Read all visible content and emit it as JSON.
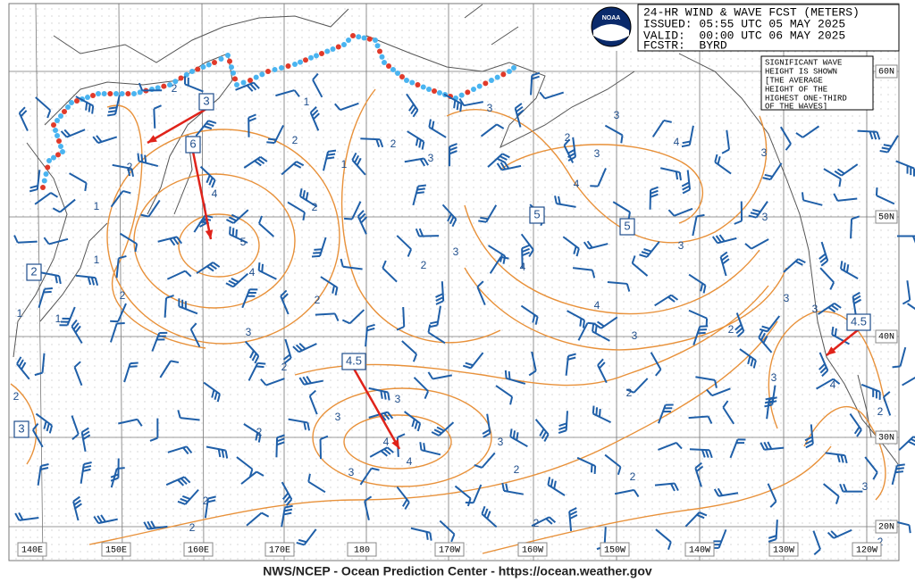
{
  "header": {
    "lines": [
      "24-HR WIND & WAVE FCST (METERS)",
      "ISSUED: 05:55 UTC 05 MAY 2025",
      "VALID:  00:00 UTC 06 MAY 2025",
      "FCSTR:  BYRD"
    ]
  },
  "logo": "NOAA",
  "note": {
    "lines": [
      "SIGNIFICANT WAVE",
      "HEIGHT IS SHOWN",
      "[THE AVERAGE",
      "HEIGHT OF THE",
      "HIGHEST ONE-THIRD",
      "OF THE WAVES]"
    ]
  },
  "longitude_labels": [
    "140E",
    "150E",
    "160E",
    "170E",
    "180",
    "170W",
    "160W",
    "150W",
    "140W",
    "130W",
    "120W"
  ],
  "latitude_labels": [
    "60N",
    "50N",
    "40N",
    "30N",
    "20N"
  ],
  "boxed_labels": [
    3,
    6,
    2,
    3,
    5,
    5,
    4.5,
    4.5
  ],
  "contour_labels": [
    1,
    1,
    1,
    1,
    2,
    2,
    2,
    1,
    2,
    1,
    2,
    3,
    3,
    2,
    3,
    3,
    4,
    3,
    4,
    3,
    2,
    3,
    4,
    4,
    3,
    3,
    2,
    4,
    5,
    4,
    2,
    2,
    3,
    2,
    2,
    2,
    3,
    3,
    4,
    4,
    3,
    3,
    2,
    2,
    2,
    2,
    2,
    2,
    3,
    3,
    4,
    2,
    3,
    2,
    3
  ],
  "footer": "NWS/NCEP - Ocean Prediction Center - https://ocean.weather.gov"
}
